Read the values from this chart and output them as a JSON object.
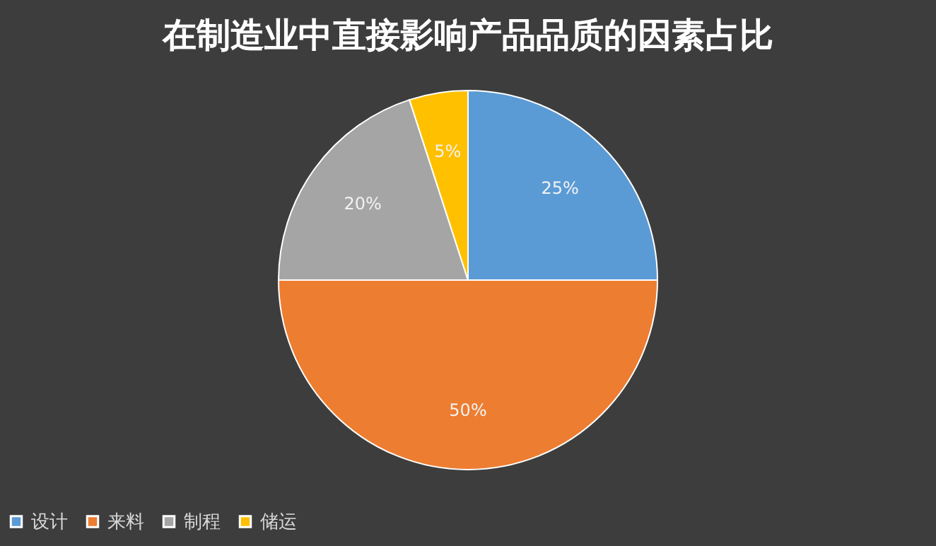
{
  "chart_data": {
    "type": "pie",
    "title": "在制造业中直接影响产品品质的因素占比",
    "categories": [
      "设计",
      "来料",
      "制程",
      "储运"
    ],
    "values": [
      25,
      50,
      20,
      5
    ],
    "colors": [
      "#5b9bd5",
      "#ed7d31",
      "#a5a5a5",
      "#ffc000"
    ],
    "value_labels": [
      "25%",
      "50%",
      "20%",
      "5%"
    ],
    "legend": "bottom"
  }
}
